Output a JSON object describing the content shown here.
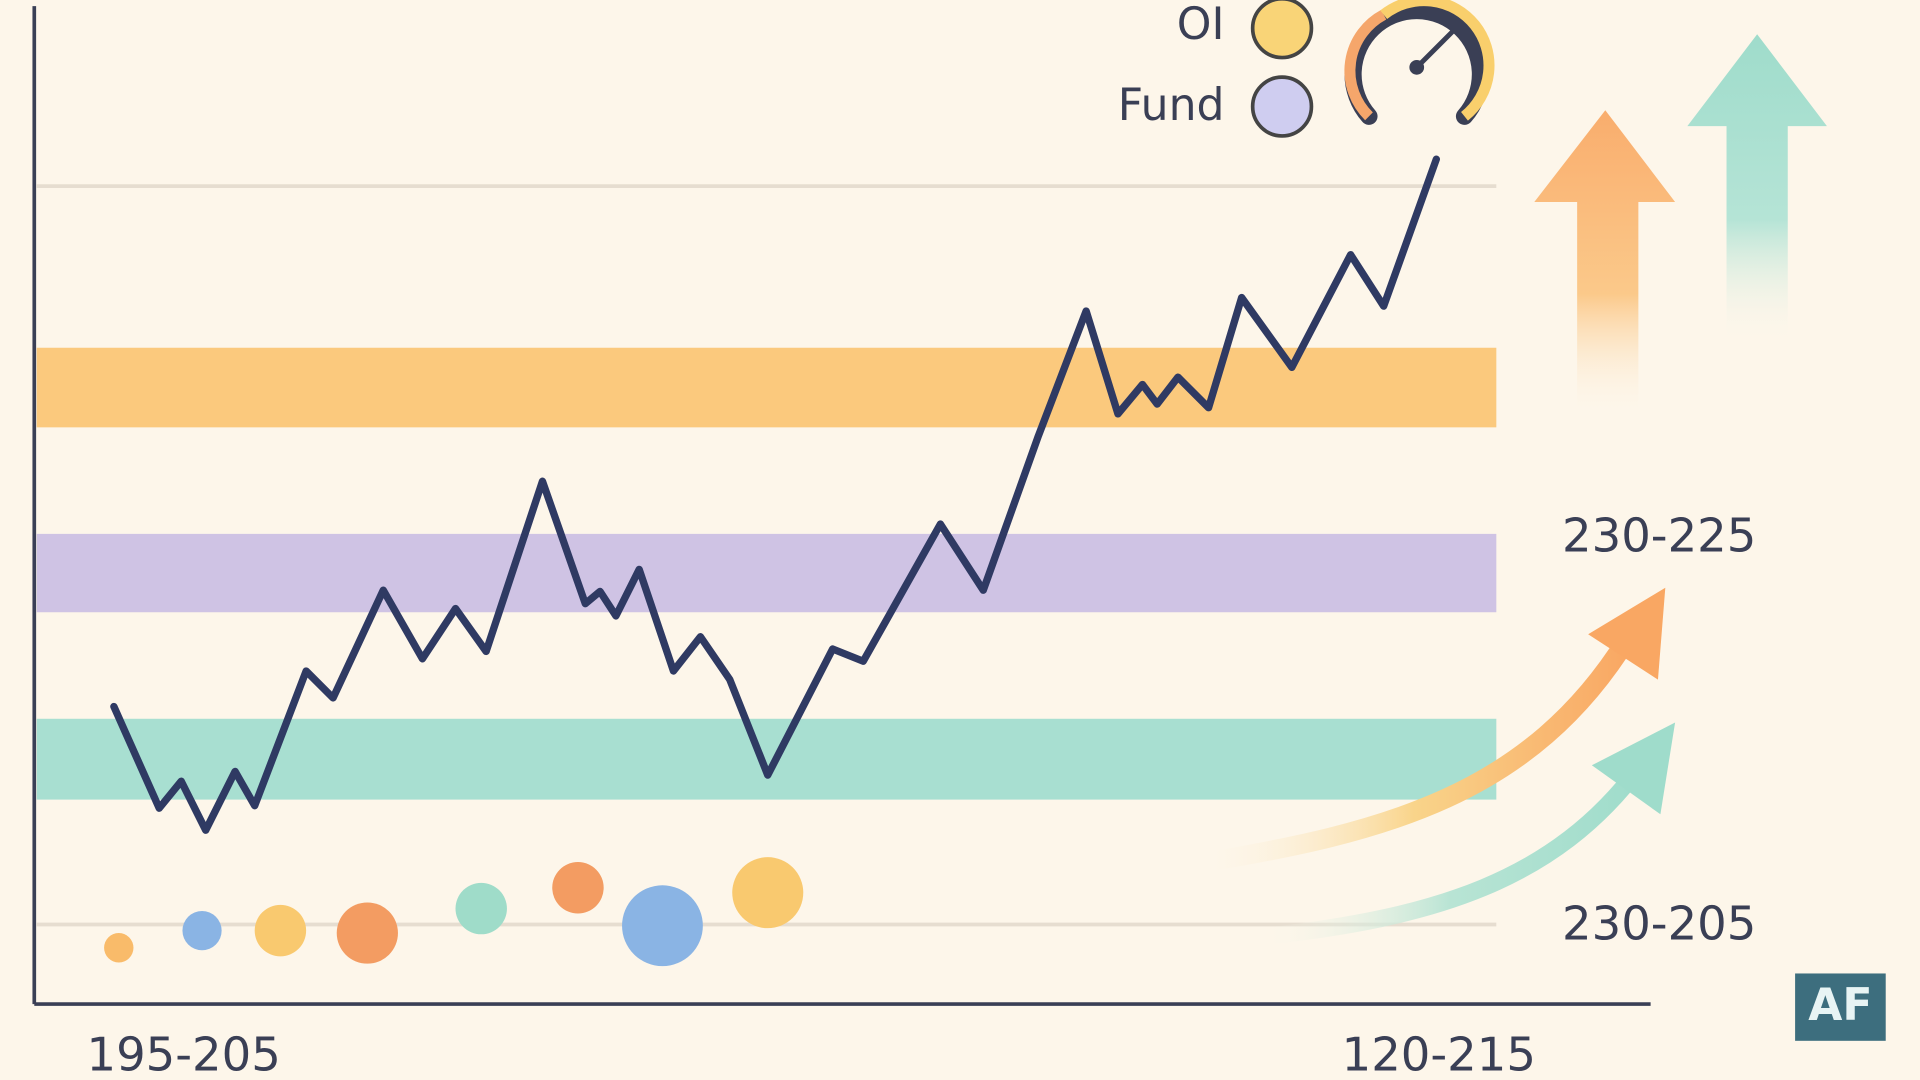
{
  "legend": {
    "items": [
      "OI",
      "Fund"
    ]
  },
  "annotations": {
    "upper_range": "230-225",
    "lower_range": "230-205"
  },
  "x_labels": {
    "left": "195-205",
    "right": "120-215"
  },
  "badge": "AF"
}
